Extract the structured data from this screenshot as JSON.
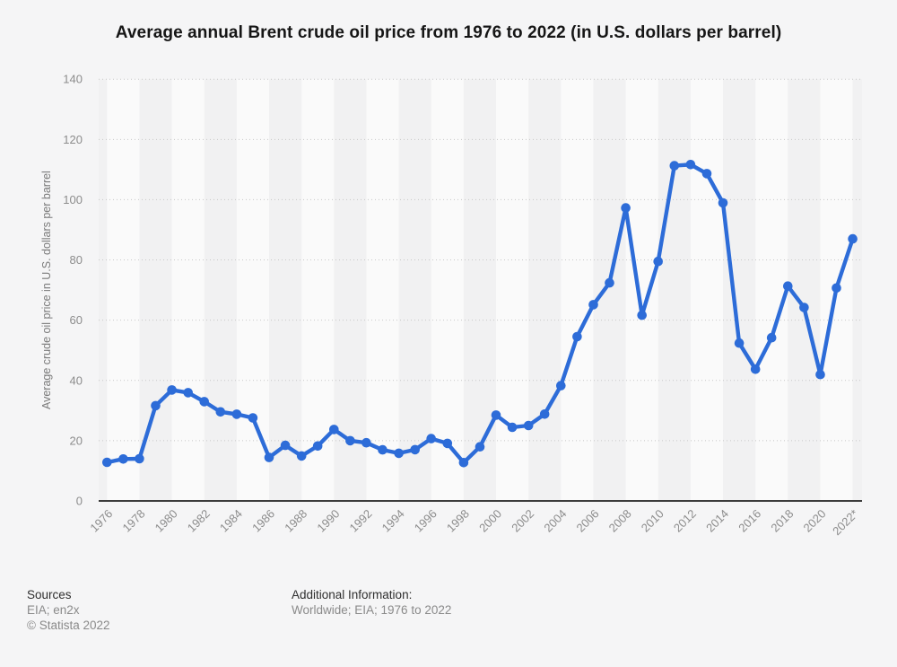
{
  "page_background": "#f5f5f6",
  "chart_data": {
    "type": "line",
    "title": "Average annual Brent crude oil price from 1976 to 2022 (in U.S. dollars per barrel)",
    "xlabel": "",
    "ylabel": "Average crude oil price in U.S. dollars per barrel",
    "x": [
      1976,
      1977,
      1978,
      1979,
      1980,
      1981,
      1982,
      1983,
      1984,
      1985,
      1986,
      1987,
      1988,
      1989,
      1990,
      1991,
      1992,
      1993,
      1994,
      1995,
      1996,
      1997,
      1998,
      1999,
      2000,
      2001,
      2002,
      2003,
      2004,
      2005,
      2006,
      2007,
      2008,
      2009,
      2010,
      2011,
      2012,
      2013,
      2014,
      2015,
      2016,
      2017,
      2018,
      2019,
      2020,
      2021,
      2022
    ],
    "series": [
      {
        "name": "Brent crude oil price (U.S. dollars per barrel)",
        "values": [
          12.8,
          13.92,
          14.02,
          31.61,
          36.83,
          35.93,
          32.97,
          29.55,
          28.78,
          27.56,
          14.43,
          18.44,
          14.92,
          18.23,
          23.73,
          20.0,
          19.32,
          16.97,
          15.82,
          17.02,
          20.67,
          19.09,
          12.72,
          17.97,
          28.5,
          24.44,
          25.02,
          28.83,
          38.27,
          54.52,
          65.14,
          72.39,
          97.26,
          61.67,
          79.5,
          111.26,
          111.67,
          108.66,
          98.95,
          52.39,
          43.73,
          54.19,
          71.31,
          64.21,
          41.96,
          70.68,
          87.0
        ]
      }
    ],
    "x_tick_labels": [
      "1976",
      "1978",
      "1980",
      "1982",
      "1984",
      "1986",
      "1988",
      "1990",
      "1992",
      "1994",
      "1996",
      "1998",
      "2000",
      "2002",
      "2004",
      "2006",
      "2008",
      "2010",
      "2012",
      "2014",
      "2016",
      "2018",
      "2020",
      "2022*"
    ],
    "y_ticks": [
      0,
      20,
      40,
      60,
      80,
      100,
      120,
      140
    ],
    "ylim": [
      0,
      140
    ],
    "grid": "horizontal dotted",
    "legend": "none",
    "line_color": "#2d6cd8",
    "marker": "circle",
    "plot_band_light": "#fafafa",
    "plot_band_dark": "#f1f1f2",
    "gridline_color": "#c8c8c8",
    "axis_line_color": "#3c3c3c",
    "tick_label_color": "#8c8c8c",
    "y_axis_title_color": "#7a7a7a"
  },
  "footer": {
    "sources_label": "Sources",
    "sources_line1": "EIA; en2x",
    "sources_line2": "© Statista 2022",
    "additional_label": "Additional Information:",
    "additional_line1": "Worldwide; EIA; 1976 to 2022"
  }
}
